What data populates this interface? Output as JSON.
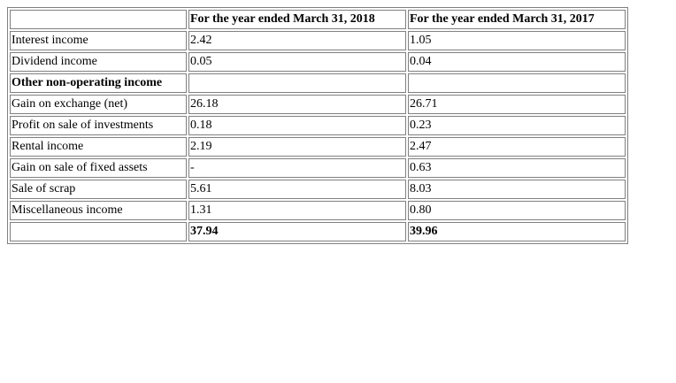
{
  "table": {
    "headers": [
      "",
      "For the year ended March 31, 2018",
      "For the year ended March 31, 2017"
    ],
    "rows": [
      {
        "label": "Interest income",
        "fy2018": "2.42",
        "fy2017": "1.05"
      },
      {
        "label": "Dividend income",
        "fy2018": "0.05",
        "fy2017": "0.04"
      },
      {
        "label": "Other non-operating income",
        "fy2018": "",
        "fy2017": ""
      },
      {
        "label": "Gain on exchange (net)",
        "fy2018": "26.18",
        "fy2017": "26.71"
      },
      {
        "label": "Profit on sale of investments",
        "fy2018": "0.18",
        "fy2017": "0.23"
      },
      {
        "label": "Rental income",
        "fy2018": "2.19",
        "fy2017": "2.47"
      },
      {
        "label": "Gain on sale of fixed assets",
        "fy2018": "-",
        "fy2017": "0.63"
      },
      {
        "label": "Sale of scrap",
        "fy2018": "5.61",
        "fy2017": "8.03"
      },
      {
        "label": "Miscellaneous income",
        "fy2018": "1.31",
        "fy2017": "0.80"
      }
    ],
    "total": {
      "label": "",
      "fy2018": "37.94",
      "fy2017": "39.96"
    }
  }
}
